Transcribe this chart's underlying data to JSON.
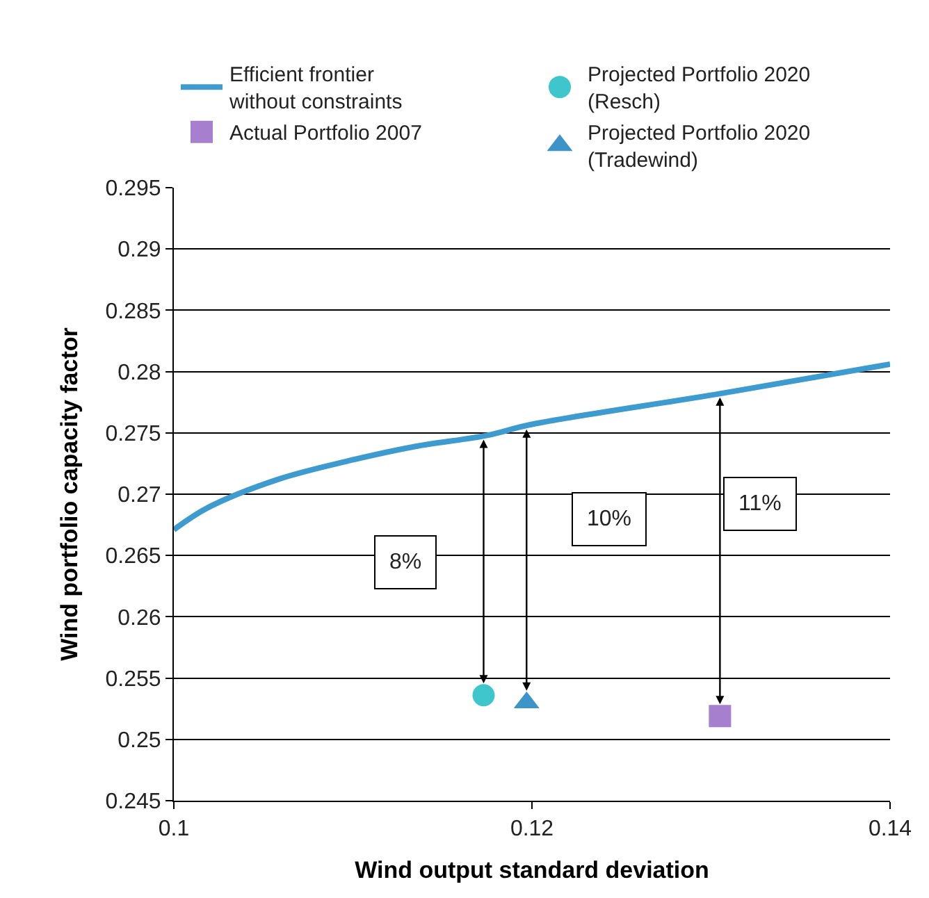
{
  "chart_data": {
    "type": "line",
    "xlabel": "Wind output standard deviation",
    "ylabel": "Wind portfolio capacity factor",
    "xlim": [
      0.1,
      0.14
    ],
    "xticks": [
      0.1,
      0.12,
      0.14
    ],
    "ylim": [
      0.245,
      0.295
    ],
    "yticks": [
      0.245,
      0.25,
      0.255,
      0.26,
      0.265,
      0.27,
      0.275,
      0.28,
      0.285,
      0.29,
      0.295
    ],
    "grid": "y",
    "legend": "top",
    "series": [
      {
        "name": "Efficient frontier without constraints",
        "marker": "none",
        "color": "#3d9bd0",
        "x": [
          0.1,
          0.1019,
          0.1058,
          0.1097,
          0.1135,
          0.1175,
          0.12,
          0.1305,
          0.14
        ],
        "values": [
          0.2671,
          0.2689,
          0.2712,
          0.2727,
          0.2739,
          0.2748,
          0.2757,
          0.2782,
          0.2806
        ]
      },
      {
        "name": "Projected Portfolio 2020 (Resch)",
        "type": "scatter",
        "marker": "circle",
        "color": "#3ec6cc",
        "x": [
          0.1173
        ],
        "values": [
          0.2536
        ]
      },
      {
        "name": "Actual Portfolio 2007",
        "type": "scatter",
        "marker": "square",
        "color": "#a67fcf",
        "x": [
          0.1305
        ],
        "values": [
          0.2519
        ]
      },
      {
        "name": "Projected Portfolio 2020 (Tradewind)",
        "type": "scatter",
        "marker": "triangle",
        "color": "#3c94c8",
        "x": [
          0.1197
        ],
        "values": [
          0.253
        ]
      }
    ],
    "annotations": [
      "8%",
      "10%",
      "11%"
    ]
  }
}
